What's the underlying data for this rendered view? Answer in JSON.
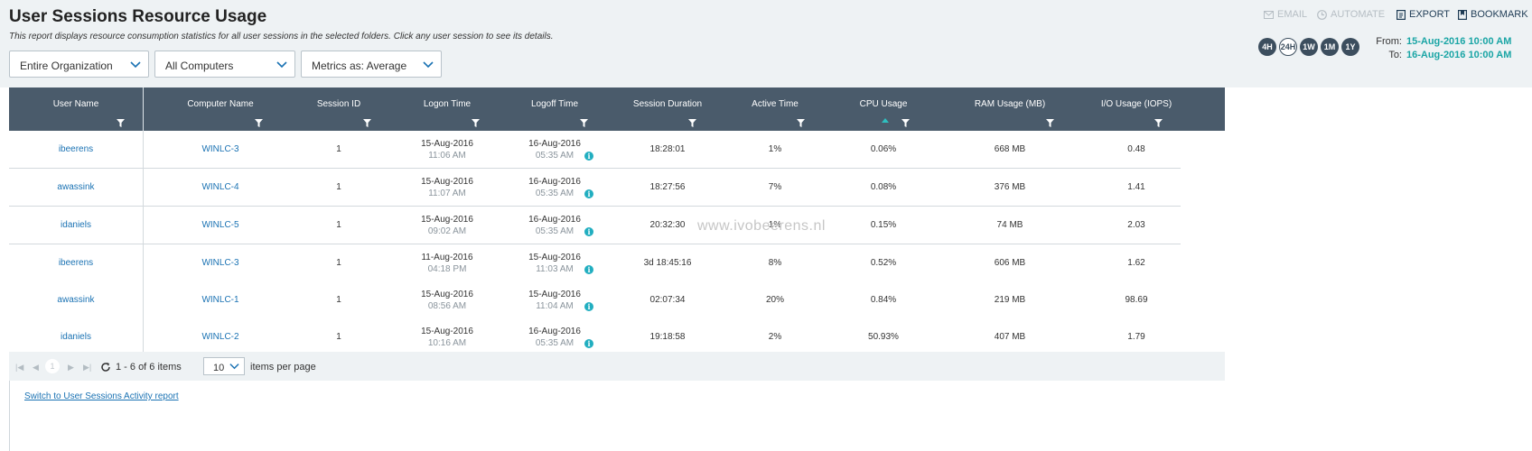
{
  "header": {
    "title": "User Sessions Resource Usage",
    "subtitle": "This report displays resource consumption statistics for all user sessions in the selected folders. Click any user session to see its details."
  },
  "filters": {
    "organization": "Entire Organization",
    "computers": "All Computers",
    "metrics": "Metrics as: Average"
  },
  "toolbar": {
    "email": "EMAIL",
    "automate": "AUTOMATE",
    "export": "EXPORT",
    "bookmark": "BOOKMARK"
  },
  "periods": [
    "4H",
    "24H",
    "1W",
    "1M",
    "1Y"
  ],
  "selected_period": "24H",
  "range": {
    "from_label": "From:",
    "from_value": "15-Aug-2016 10:00 AM",
    "to_label": "To:",
    "to_value": "16-Aug-2016 10:00 AM"
  },
  "table": {
    "columns": [
      "User Name",
      "Computer Name",
      "Session ID",
      "Logon Time",
      "Logoff Time",
      "Session Duration",
      "Active Time",
      "CPU Usage",
      "RAM Usage (MB)",
      "I/O Usage (IOPS)"
    ],
    "sorted_column": "CPU Usage",
    "rows": [
      {
        "user": "ibeerens",
        "computer": "WINLC-3",
        "session_id": "1",
        "logon_date": "15-Aug-2016",
        "logon_time": "11:06 AM",
        "logoff_date": "16-Aug-2016",
        "logoff_time": "05:35 AM",
        "duration": "18:28:01",
        "active": "1%",
        "cpu": "0.06%",
        "ram": "668 MB",
        "io": "0.48"
      },
      {
        "user": "awassink",
        "computer": "WINLC-4",
        "session_id": "1",
        "logon_date": "15-Aug-2016",
        "logon_time": "11:07 AM",
        "logoff_date": "16-Aug-2016",
        "logoff_time": "05:35 AM",
        "duration": "18:27:56",
        "active": "7%",
        "cpu": "0.08%",
        "ram": "376 MB",
        "io": "1.41"
      },
      {
        "user": "idaniels",
        "computer": "WINLC-5",
        "session_id": "1",
        "logon_date": "15-Aug-2016",
        "logon_time": "09:02 AM",
        "logoff_date": "16-Aug-2016",
        "logoff_time": "05:35 AM",
        "duration": "20:32:30",
        "active": "1%",
        "cpu": "0.15%",
        "ram": "74 MB",
        "io": "2.03"
      },
      {
        "user": "ibeerens",
        "computer": "WINLC-3",
        "session_id": "1",
        "logon_date": "11-Aug-2016",
        "logon_time": "04:18 PM",
        "logoff_date": "15-Aug-2016",
        "logoff_time": "11:03 AM",
        "duration": "3d 18:45:16",
        "active": "8%",
        "cpu": "0.52%",
        "ram": "606 MB",
        "io": "1.62"
      },
      {
        "user": "awassink",
        "computer": "WINLC-1",
        "session_id": "1",
        "logon_date": "15-Aug-2016",
        "logon_time": "08:56 AM",
        "logoff_date": "15-Aug-2016",
        "logoff_time": "11:04 AM",
        "duration": "02:07:34",
        "active": "20%",
        "cpu": "0.84%",
        "ram": "219 MB",
        "io": "98.69"
      },
      {
        "user": "idaniels",
        "computer": "WINLC-2",
        "session_id": "1",
        "logon_date": "15-Aug-2016",
        "logon_time": "10:16 AM",
        "logoff_date": "16-Aug-2016",
        "logoff_time": "05:35 AM",
        "duration": "19:18:58",
        "active": "2%",
        "cpu": "50.93%",
        "ram": "407 MB",
        "io": "1.79"
      }
    ]
  },
  "pager": {
    "page": "1",
    "summary": "1 - 6 of 6 items",
    "page_size": "10",
    "per_page_label": "items per page"
  },
  "footer": {
    "switch_link": "Switch to User Sessions Activity report"
  },
  "watermark": "www.ivobeerens.nl",
  "colors": {
    "header_bg": "#4a5b6b",
    "accent_teal": "#1aa5a5",
    "link_blue": "#1a72b3"
  }
}
